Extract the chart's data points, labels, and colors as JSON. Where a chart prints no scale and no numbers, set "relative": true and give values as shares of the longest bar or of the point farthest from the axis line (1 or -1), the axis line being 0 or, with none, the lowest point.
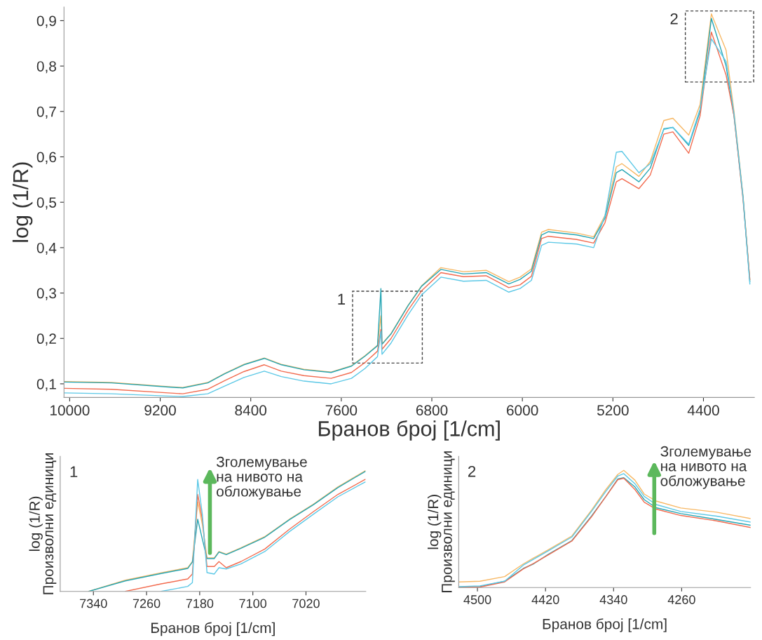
{
  "chart_data": [
    {
      "type": "line",
      "xlabel": "Бранов број [1/cm]",
      "ylabel": "log (1/R)",
      "x": [
        10050,
        9630,
        9130,
        9000,
        8780,
        8630,
        8460,
        8280,
        8130,
        7930,
        7690,
        7510,
        7390,
        7280,
        7250,
        7240,
        7160,
        7010,
        6890,
        6720,
        6520,
        6320,
        6120,
        6020,
        5920,
        5830,
        5770,
        5520,
        5370,
        5270,
        5170,
        5120,
        4970,
        4870,
        4750,
        4670,
        4530,
        4430,
        4330,
        4200,
        4130,
        4050,
        3990
      ],
      "series": [
        {
          "color": "#f7b865",
          "values": [
            0.105,
            0.103,
            0.094,
            0.092,
            0.103,
            0.123,
            0.143,
            0.157,
            0.143,
            0.132,
            0.126,
            0.14,
            0.162,
            0.185,
            0.25,
            0.188,
            0.211,
            0.273,
            0.316,
            0.356,
            0.347,
            0.35,
            0.325,
            0.335,
            0.353,
            0.434,
            0.44,
            0.432,
            0.424,
            0.471,
            0.578,
            0.585,
            0.557,
            0.59,
            0.68,
            0.685,
            0.648,
            0.715,
            0.915,
            0.835,
            0.7,
            0.514,
            0.329
          ]
        },
        {
          "color": "#26a6b4",
          "values": [
            0.104,
            0.102,
            0.093,
            0.091,
            0.102,
            0.122,
            0.142,
            0.156,
            0.142,
            0.131,
            0.125,
            0.139,
            0.161,
            0.184,
            0.31,
            0.187,
            0.21,
            0.272,
            0.315,
            0.352,
            0.342,
            0.345,
            0.32,
            0.33,
            0.348,
            0.428,
            0.435,
            0.428,
            0.42,
            0.465,
            0.565,
            0.572,
            0.545,
            0.575,
            0.662,
            0.665,
            0.625,
            0.7,
            0.905,
            0.8,
            0.69,
            0.51,
            0.325
          ]
        },
        {
          "color": "#f26b4f",
          "values": [
            0.09,
            0.088,
            0.08,
            0.078,
            0.088,
            0.107,
            0.127,
            0.142,
            0.128,
            0.118,
            0.112,
            0.125,
            0.147,
            0.172,
            0.22,
            0.176,
            0.2,
            0.262,
            0.305,
            0.345,
            0.336,
            0.338,
            0.312,
            0.318,
            0.337,
            0.42,
            0.425,
            0.418,
            0.41,
            0.455,
            0.545,
            0.552,
            0.53,
            0.56,
            0.65,
            0.655,
            0.608,
            0.69,
            0.875,
            0.78,
            0.69,
            0.505,
            0.33
          ]
        },
        {
          "color": "#5cc8e6",
          "values": [
            0.08,
            0.078,
            0.073,
            0.072,
            0.078,
            0.095,
            0.114,
            0.128,
            0.116,
            0.106,
            0.1,
            0.112,
            0.134,
            0.16,
            0.215,
            0.165,
            0.19,
            0.252,
            0.296,
            0.335,
            0.326,
            0.328,
            0.302,
            0.31,
            0.328,
            0.405,
            0.412,
            0.408,
            0.4,
            0.47,
            0.61,
            0.612,
            0.565,
            0.585,
            0.66,
            0.665,
            0.628,
            0.705,
            0.86,
            0.81,
            0.695,
            0.51,
            0.32
          ]
        }
      ],
      "xlim": [
        10050,
        3950
      ],
      "xticks": [
        10000,
        9200,
        8400,
        7600,
        6800,
        6000,
        5200,
        4400
      ],
      "ylim": [
        0.07,
        0.93
      ],
      "yticks": [
        {
          "value": 0.1,
          "label": "0,1"
        },
        {
          "value": 0.2,
          "label": "0,2"
        },
        {
          "value": 0.3,
          "label": "0,3"
        },
        {
          "value": 0.4,
          "label": "0,4"
        },
        {
          "value": 0.5,
          "label": "0,5"
        },
        {
          "value": 0.6,
          "label": "0,6"
        },
        {
          "value": 0.7,
          "label": "0,7"
        },
        {
          "value": 0.8,
          "label": "0,8"
        },
        {
          "value": 0.9,
          "label": "0,9"
        }
      ],
      "annotations": [
        "1",
        "2"
      ]
    },
    {
      "type": "line",
      "relative": true,
      "tick_labels": "x",
      "xlabel": "Бранов број [1/cm]",
      "ylabel": "log (1/R)\nПроизволни единици",
      "x": [
        7347,
        7292,
        7238,
        7198,
        7191,
        7183,
        7176,
        7169,
        7158,
        7151,
        7140,
        7118,
        7082,
        7045,
        7009,
        6972,
        6931
      ],
      "series": [
        {
          "color": "#f7b865",
          "values": [
            0,
            0.093,
            0.155,
            0.196,
            0.247,
            0.742,
            0.557,
            0.278,
            0.278,
            0.33,
            0.309,
            0.361,
            0.454,
            0.598,
            0.722,
            0.866,
            1
          ]
        },
        {
          "color": "#26a6b4",
          "values": [
            0,
            0.087,
            0.148,
            0.19,
            0.243,
            0.598,
            0.433,
            0.272,
            0.272,
            0.326,
            0.305,
            0.357,
            0.449,
            0.594,
            0.718,
            0.86,
            0.994
          ]
        },
        {
          "color": "#f26b4f",
          "values": [
            null,
            0,
            0.062,
            0.103,
            0.144,
            0.804,
            0.598,
            0.206,
            0.206,
            0.247,
            0.196,
            0.247,
            0.351,
            0.515,
            0.66,
            0.804,
            0.928
          ]
        },
        {
          "color": "#5cc8e6",
          "values": [
            null,
            null,
            0,
            0.041,
            0.072,
            0.928,
            0.639,
            0.155,
            0.144,
            0.196,
            0.186,
            0.227,
            0.33,
            0.495,
            0.639,
            0.784,
            0.907
          ]
        }
      ],
      "xlim": [
        7390,
        6930
      ],
      "xticks": [
        7340,
        7260,
        7180,
        7100,
        7020
      ],
      "annotations": [
        "1",
        "Зголемување\nна нивото на\nобложување"
      ]
    },
    {
      "type": "line",
      "relative": true,
      "tick_labels": "x",
      "xlabel": "Бранов број [1/cm]",
      "ylabel": "log (1/R)\nПроизволни единици",
      "x": [
        4521,
        4497,
        4468,
        4446,
        4434,
        4417,
        4389,
        4366,
        4349,
        4335,
        4328,
        4315,
        4304,
        4290,
        4261,
        4219,
        4179
      ],
      "series": [
        {
          "color": "#f7b865",
          "values": [
            0.048,
            0.054,
            0.093,
            0.202,
            0.252,
            0.321,
            0.44,
            0.659,
            0.837,
            0.966,
            1.0,
            0.917,
            0.798,
            0.738,
            0.679,
            0.643,
            0.589
          ]
        },
        {
          "color": "#26a6b4",
          "values": [
            0.004,
            0.008,
            0.054,
            0.163,
            0.202,
            0.282,
            0.401,
            0.61,
            0.778,
            0.927,
            0.937,
            0.859,
            0.75,
            0.681,
            0.631,
            0.581,
            0.532
          ]
        },
        {
          "color": "#f26b4f",
          "values": [
            0,
            0.004,
            0.048,
            0.159,
            0.206,
            0.278,
            0.397,
            0.603,
            0.778,
            0.921,
            0.933,
            0.837,
            0.728,
            0.669,
            0.615,
            0.569,
            0.512
          ]
        },
        {
          "color": "#5cc8e6",
          "values": [
            0.008,
            0.014,
            0.054,
            0.192,
            0.242,
            0.312,
            0.431,
            0.649,
            0.821,
            0.952,
            0.972,
            0.887,
            0.778,
            0.708,
            0.649,
            0.609,
            0.559
          ]
        }
      ],
      "xlim": [
        4522,
        4179
      ],
      "xticks": [
        4500,
        4420,
        4340,
        4260
      ],
      "annotations": [
        "2",
        "Зголемување\nна нивото на\nобложување"
      ]
    }
  ]
}
